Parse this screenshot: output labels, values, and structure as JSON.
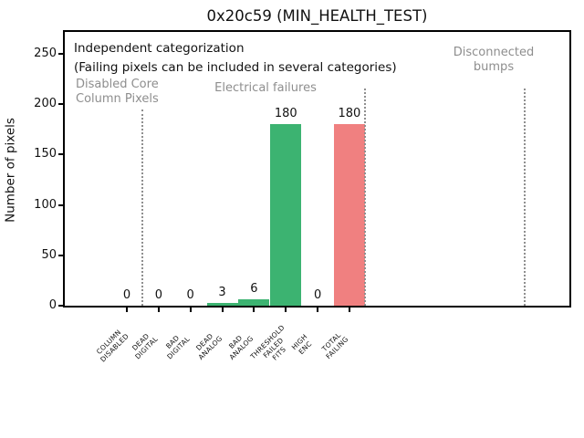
{
  "window": {
    "title": "0x20c59 (MIN_HEALTH_TEST)"
  },
  "chart_data": {
    "type": "bar",
    "title": "0x20c59 (MIN_HEALTH_TEST)",
    "xlabel": "",
    "ylabel": "Number of pixels",
    "categories": [
      "COLUMN DISABLED",
      "DEAD DIGITAL",
      "BAD DIGITAL",
      "DEAD ANALOG",
      "BAD ANALOG",
      "THRESHOLD FAILED FITS",
      "HIGH ENC",
      "TOTAL FAILING"
    ],
    "category_label_lines": [
      [
        "COLUMN",
        "DISABLED"
      ],
      [
        "DEAD",
        "DIGITAL"
      ],
      [
        "BAD",
        "DIGITAL"
      ],
      [
        "DEAD",
        "ANALOG"
      ],
      [
        "BAD",
        "ANALOG"
      ],
      [
        "THRESHOLD",
        "FAILED",
        "FITS"
      ],
      [
        "HIGH",
        "ENC"
      ],
      [
        "TOTAL",
        "FAILING"
      ]
    ],
    "values": [
      0,
      0,
      0,
      3,
      6,
      180,
      0,
      180
    ],
    "value_labels": [
      "0",
      "0",
      "0",
      "3",
      "6",
      "180",
      "0",
      "180"
    ],
    "bar_colors": [
      "#3cb371",
      "#3cb371",
      "#3cb371",
      "#3cb371",
      "#3cb371",
      "#3cb371",
      "#3cb371",
      "#f08080"
    ],
    "yticks": [
      0,
      50,
      100,
      150,
      200,
      250
    ],
    "ylim": [
      0,
      272
    ],
    "grid": false,
    "legend_position": "none",
    "annotations": {
      "note_line1": "Independent categorization",
      "note_line2": "(Failing pixels can be included in several categories)",
      "region_labels": [
        {
          "lines": [
            "Disabled Core",
            "Column Pixels"
          ]
        },
        {
          "lines": [
            "Electrical failures"
          ]
        },
        {
          "lines": [
            "Disconnected",
            "bumps"
          ]
        }
      ],
      "region_separator_boundaries": [
        0.5,
        7.5,
        12.5
      ]
    },
    "colors": {
      "bar_green": "#3cb371",
      "bar_red": "#f08080",
      "muted_gray": "#8e8e8e",
      "axis_black": "#000000"
    }
  }
}
